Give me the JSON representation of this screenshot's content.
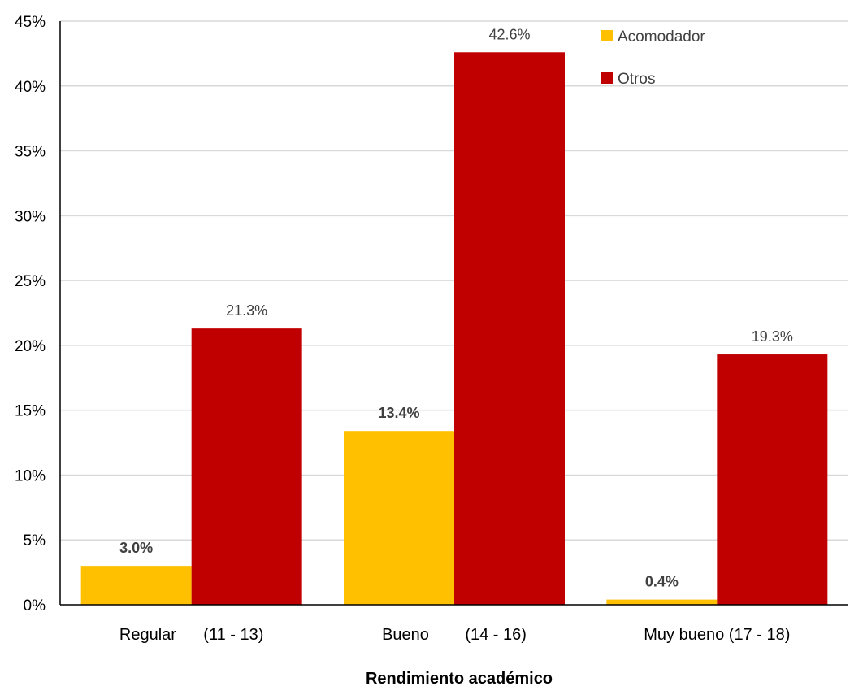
{
  "chart_data": {
    "type": "bar",
    "categories": [
      "Regular      (11 - 13)",
      "Bueno        (14 - 16)",
      "Muy bueno (17 - 18)"
    ],
    "series": [
      {
        "name": "Acomodador",
        "values": [
          3.0,
          13.4,
          0.4
        ],
        "color": "#FFC000",
        "labels": [
          "3.0%",
          "13.4%",
          "0.4%"
        ],
        "label_bold": true
      },
      {
        "name": "Otros",
        "values": [
          21.3,
          42.6,
          19.3
        ],
        "color": "#C00000",
        "labels": [
          "21.3%",
          "42.6%",
          "19.3%"
        ],
        "label_bold": false
      }
    ],
    "title": "",
    "xlabel": "Rendimiento académico",
    "ylabel": "",
    "ylim": [
      0,
      45
    ],
    "yticks": [
      0,
      5,
      10,
      15,
      20,
      25,
      30,
      35,
      40,
      45
    ],
    "ytick_labels": [
      "0%",
      "5%",
      "10%",
      "15%",
      "20%",
      "25%",
      "30%",
      "35%",
      "40%",
      "45%"
    ],
    "grid": true,
    "legend": "top-right"
  }
}
